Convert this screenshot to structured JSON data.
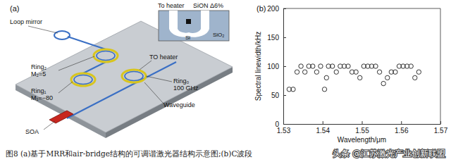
{
  "diagram": {
    "panel_label": "(a)",
    "labels": {
      "loop_mirror": "Loop mirror",
      "to_heater": "To heater",
      "sion": "SiON Δ6%",
      "sio2": "SiO₂",
      "si": "Si",
      "to_heater_ring": "TO heater",
      "ring2": "Ring₂",
      "m2": "M₂=5",
      "ring1": "Ring₁",
      "m1": "M₁=−80",
      "ring0": "Ring₀",
      "fsr": "100 GHz",
      "waveguide": "Waveguide",
      "soa": "SOA"
    }
  },
  "chart_data": {
    "type": "scatter",
    "annotations": [
      "(b)"
    ],
    "x_label": "Wavelength/μm",
    "y_label": "Spectral linewidth/kHz",
    "x": [
      1.5315,
      1.5325,
      1.5335,
      1.5345,
      1.5355,
      1.5365,
      1.5375,
      1.5385,
      1.5395,
      1.5405,
      1.541,
      1.5415,
      1.5425,
      1.5435,
      1.5445,
      1.5455,
      1.5465,
      1.5475,
      1.5485,
      1.5495,
      1.5505,
      1.5515,
      1.5525,
      1.5535,
      1.5545,
      1.5555,
      1.5565,
      1.5575,
      1.5585,
      1.5595,
      1.5605,
      1.5615,
      1.5625,
      1.5635,
      1.5645
    ],
    "values": [
      60,
      60,
      90,
      100,
      90,
      100,
      100,
      90,
      100,
      60,
      80,
      100,
      100,
      90,
      100,
      100,
      100,
      90,
      90,
      80,
      100,
      100,
      100,
      100,
      90,
      70,
      80,
      90,
      90,
      100,
      100,
      100,
      100,
      80,
      90
    ],
    "color": "#333333",
    "marker": "open-circle",
    "xlim": [
      1.53,
      1.57
    ],
    "xticks": [
      1.53,
      1.54,
      1.55,
      1.56,
      1.57
    ],
    "ylim": [
      0,
      200
    ],
    "yticks": [
      0,
      50,
      100,
      150,
      200
    ],
    "grid": false
  },
  "caption": "图8 (a)基于MRR和air-bridge结构的可调谐激光器结构示意图;(b)C波段",
  "watermark": "头条 @江苏激光产业创新联盟"
}
